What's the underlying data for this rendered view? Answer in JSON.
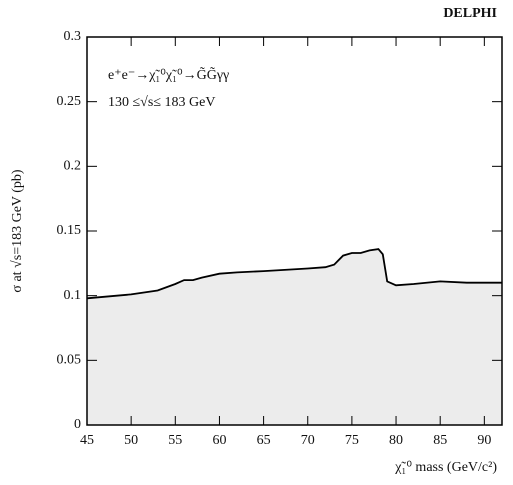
{
  "chart_data": {
    "type": "line",
    "label": "DELPHI",
    "xlabel": "χ̃₁⁰ mass (GeV/c²)",
    "ylabel": "σ at √s=183 GeV (pb)",
    "annotations": [
      "e⁺e⁻→χ̃₁⁰χ̃₁⁰→G̃G̃γγ",
      "130 ≤√s≤ 183 GeV"
    ],
    "x": [
      45,
      50,
      53,
      55,
      56,
      57,
      58,
      60,
      62,
      65,
      70,
      72,
      73,
      74,
      75,
      76,
      77,
      78,
      78.5,
      79,
      80,
      82,
      85,
      88,
      92
    ],
    "values": [
      0.098,
      0.101,
      0.104,
      0.109,
      0.112,
      0.112,
      0.114,
      0.117,
      0.118,
      0.119,
      0.121,
      0.122,
      0.124,
      0.131,
      0.133,
      0.133,
      0.135,
      0.136,
      0.132,
      0.111,
      0.108,
      0.109,
      0.111,
      0.11,
      0.11
    ],
    "color": "#000000",
    "fill": "#ececec",
    "xlim": [
      45,
      92
    ],
    "ylim": [
      0,
      0.3
    ],
    "xticks": [
      45,
      50,
      55,
      60,
      65,
      70,
      75,
      80,
      85,
      90
    ],
    "yticks": [
      0,
      0.05,
      0.1,
      0.15,
      0.2,
      0.25,
      0.3
    ]
  }
}
